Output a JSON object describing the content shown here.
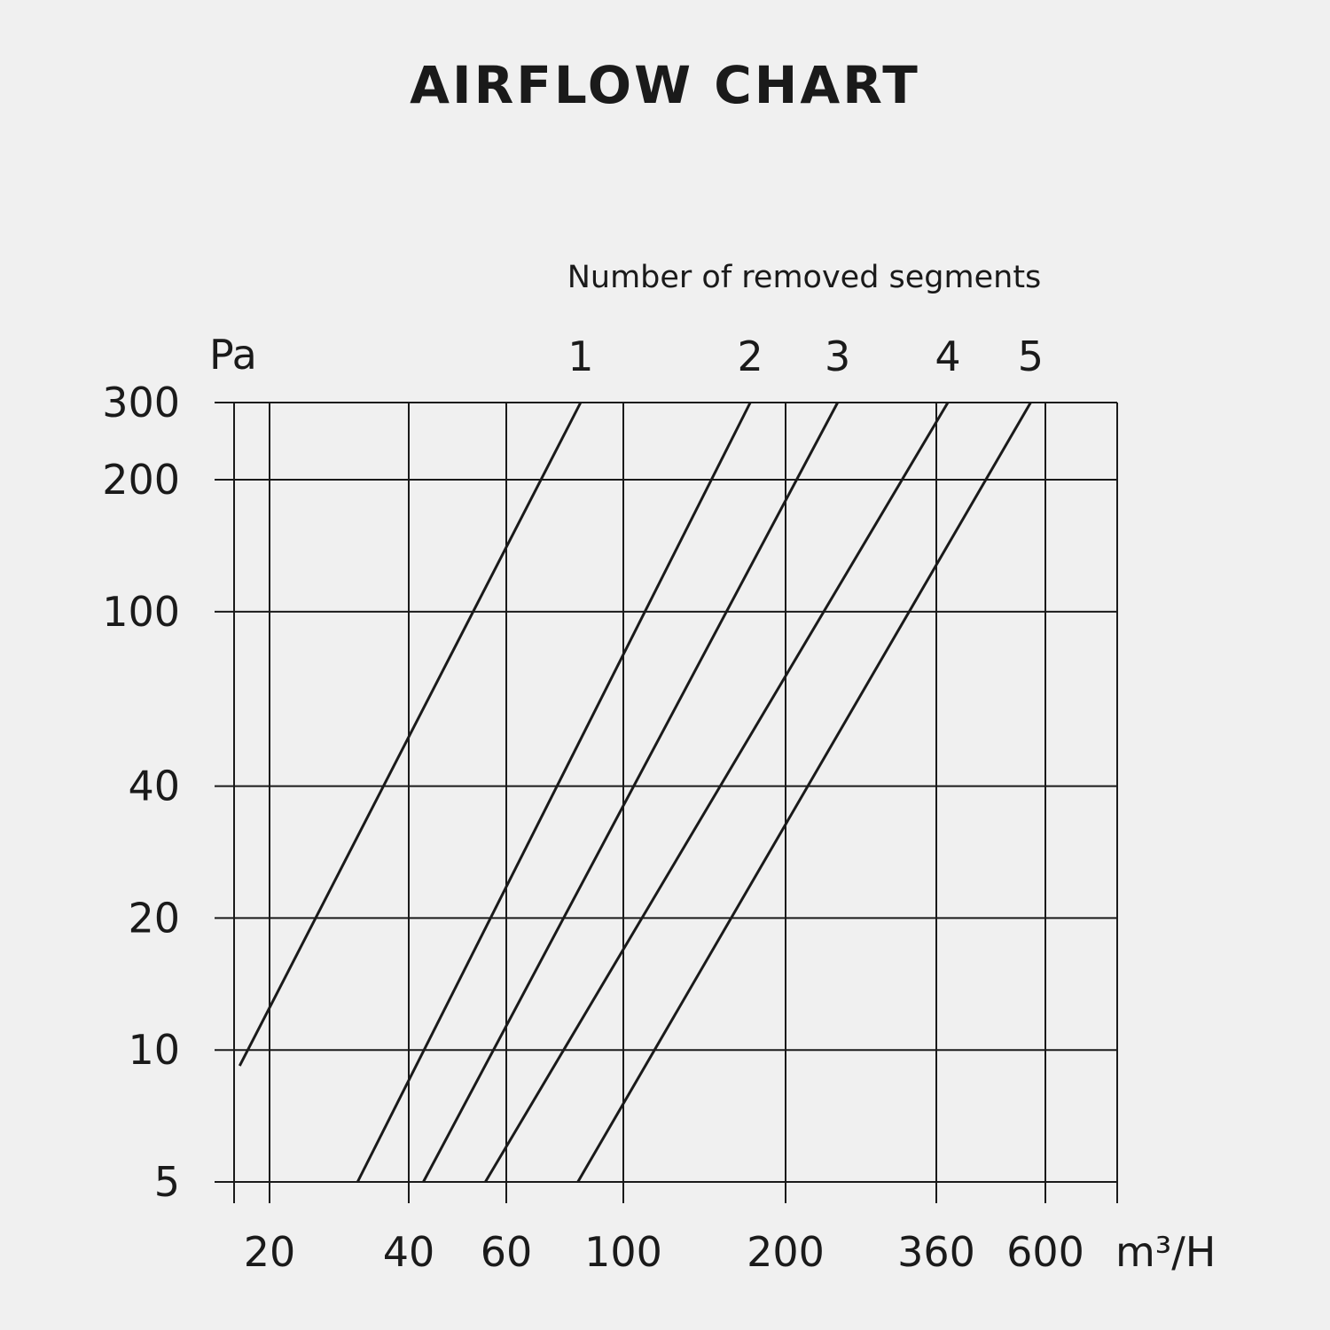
{
  "chart_data": {
    "type": "line",
    "title": "AIRFLOW CHART",
    "subtitle": "Number of removed segments",
    "ylabel": "Pa",
    "xlabel": "m³/H",
    "x_scale": "custom-nonuniform",
    "y_scale": "log",
    "x_ticks": [
      20,
      40,
      60,
      100,
      200,
      360,
      600
    ],
    "y_ticks": [
      5,
      10,
      20,
      40,
      100,
      200,
      300
    ],
    "xlim": [
      18,
      800
    ],
    "ylim": [
      5,
      300
    ],
    "grid": true,
    "line_color": "#1a1a1a",
    "series": [
      {
        "name": "1",
        "points": [
          [
            18.3,
            9.2
          ],
          [
            83,
            300
          ]
        ]
      },
      {
        "name": "2",
        "points": [
          [
            31,
            5
          ],
          [
            172,
            300
          ]
        ]
      },
      {
        "name": "3",
        "points": [
          [
            42.5,
            5
          ],
          [
            245,
            300
          ]
        ]
      },
      {
        "name": "4",
        "points": [
          [
            55,
            5
          ],
          [
            380,
            300
          ]
        ]
      },
      {
        "name": "5",
        "points": [
          [
            82,
            5
          ],
          [
            560,
            300
          ]
        ]
      }
    ]
  }
}
